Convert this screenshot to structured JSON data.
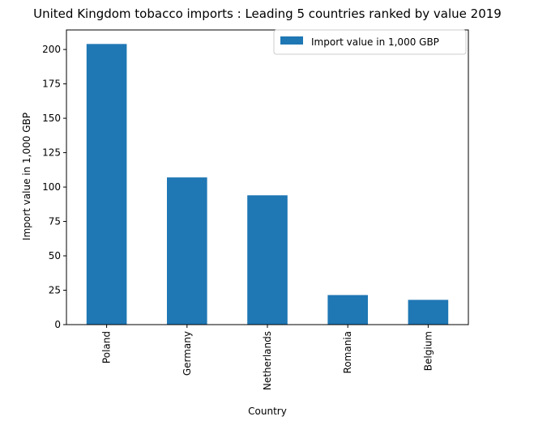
{
  "chart_data": {
    "type": "bar",
    "title": "United Kingdom tobacco imports : Leading 5 countries ranked by value 2019",
    "xlabel": "Country",
    "ylabel": "Import value in 1,000 GBP",
    "categories": [
      "Poland",
      "Germany",
      "Netherlands",
      "Romania",
      "Belgium"
    ],
    "series": [
      {
        "name": "Import value in 1,000 GBP",
        "values": [
          204,
          107,
          94,
          21.5,
          18
        ],
        "color": "#1f77b4"
      }
    ],
    "ylim": [
      0,
      214.2
    ],
    "yticks": [
      0,
      25,
      50,
      75,
      100,
      125,
      150,
      175,
      200
    ],
    "grid": false,
    "legend_position": "top-right"
  }
}
